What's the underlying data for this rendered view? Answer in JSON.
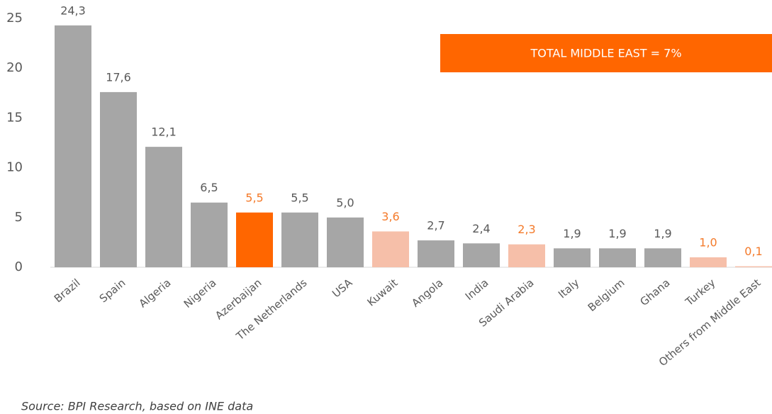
{
  "chart_data": {
    "type": "bar",
    "categories": [
      "Brazil",
      "Spain",
      "Algeria",
      "Nigeria",
      "Azerbaijan",
      "The Netherlands",
      "USA",
      "Kuwait",
      "Angola",
      "India",
      "Saudi Arabia",
      "Italy",
      "Belgium",
      "Ghana",
      "Turkey",
      "Others from Middle East"
    ],
    "values": [
      24.3,
      17.6,
      12.1,
      6.5,
      5.5,
      5.5,
      5.0,
      3.6,
      2.7,
      2.4,
      2.3,
      1.9,
      1.9,
      1.9,
      1.0,
      0.1
    ],
    "value_labels": [
      "24,3",
      "17,6",
      "12,1",
      "6,5",
      "5,5",
      "5,5",
      "5,0",
      "3,6",
      "2,7",
      "2,4",
      "2,3",
      "1,9",
      "1,9",
      "1,9",
      "1,0",
      "0,1"
    ],
    "colors": [
      "#a6a6a6",
      "#a6a6a6",
      "#a6a6a6",
      "#a6a6a6",
      "#ff6600",
      "#a6a6a6",
      "#a6a6a6",
      "#f6bfa9",
      "#a6a6a6",
      "#a6a6a6",
      "#f6bfa9",
      "#a6a6a6",
      "#a6a6a6",
      "#a6a6a6",
      "#f6bfa9",
      "#f6bfa9"
    ],
    "value_label_colors": [
      "#595959",
      "#595959",
      "#595959",
      "#595959",
      "#f47a2a",
      "#595959",
      "#595959",
      "#f47a2a",
      "#595959",
      "#595959",
      "#f47a2a",
      "#595959",
      "#595959",
      "#595959",
      "#f47a2a",
      "#f47a2a"
    ],
    "ylim": [
      0,
      25
    ],
    "yticks": [
      0,
      5,
      10,
      15,
      20,
      25
    ],
    "grid": false,
    "annotation": "TOTAL MIDDLE EAST = 7%",
    "annotation_color": "#ff6600",
    "source": "Source: BPI Research, based on INE data"
  }
}
